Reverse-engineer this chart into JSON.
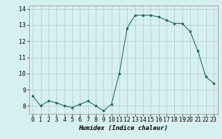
{
  "x": [
    0,
    1,
    2,
    3,
    4,
    5,
    6,
    7,
    8,
    9,
    10,
    11,
    12,
    13,
    14,
    15,
    16,
    17,
    18,
    19,
    20,
    21,
    22,
    23
  ],
  "y": [
    8.6,
    8.0,
    8.3,
    8.2,
    8.0,
    7.9,
    8.1,
    8.3,
    8.0,
    7.7,
    8.1,
    10.0,
    12.8,
    13.6,
    13.6,
    13.6,
    13.5,
    13.3,
    13.1,
    13.1,
    12.6,
    11.4,
    9.8,
    9.4
  ],
  "line_color": "#1a6b5e",
  "marker": "s",
  "marker_size": 1.8,
  "bg_color": "#d6f0f0",
  "grid_color": "#b0c8c8",
  "xlabel": "Humidex (Indice chaleur)",
  "xlim": [
    -0.5,
    23.5
  ],
  "ylim": [
    7.5,
    14.2
  ],
  "yticks": [
    8,
    9,
    10,
    11,
    12,
    13,
    14
  ],
  "xticks": [
    0,
    1,
    2,
    3,
    4,
    5,
    6,
    7,
    8,
    9,
    10,
    11,
    12,
    13,
    14,
    15,
    16,
    17,
    18,
    19,
    20,
    21,
    22,
    23
  ],
  "xlabel_fontsize": 6.5,
  "tick_fontsize": 6.0,
  "linewidth": 0.8
}
